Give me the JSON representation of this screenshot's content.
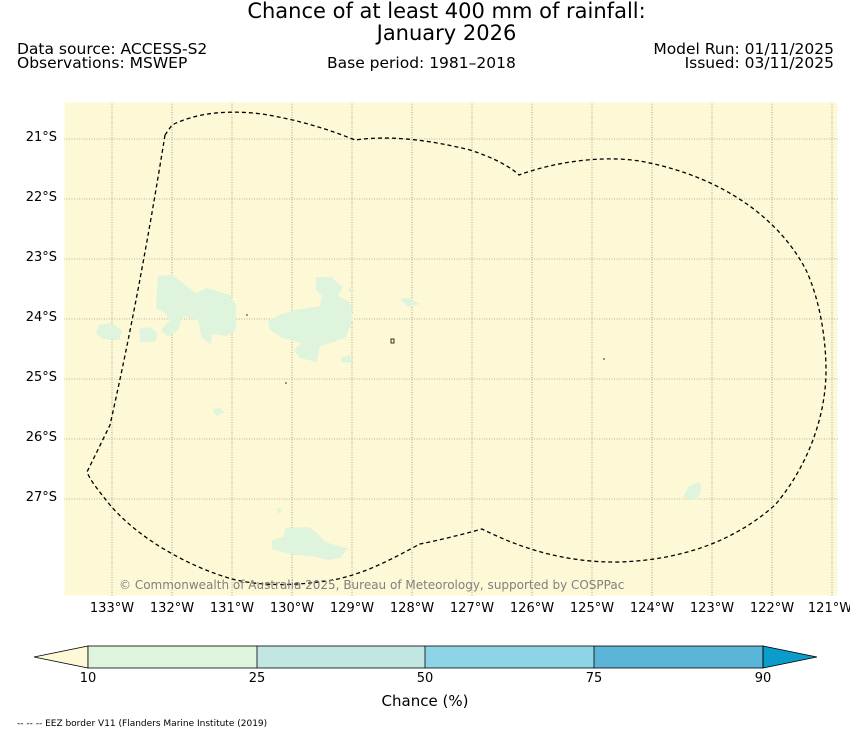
{
  "title": {
    "line1": "Chance of at least 400 mm of rainfall:",
    "line2": "January 2026"
  },
  "header": {
    "data_source": "Data source: ACCESS-S2",
    "observations": "Observations: MSWEP",
    "base_period": "Base period: 1981–2018",
    "model_run": "Model Run: 01/11/2025",
    "issued": "Issued: 03/11/2025"
  },
  "map": {
    "background_color": "#fdf8d5",
    "land_color": "#dff4dc",
    "grid_color": "#6e6e6e",
    "lat_labels": [
      "21°S",
      "22°S",
      "23°S",
      "24°S",
      "25°S",
      "26°S",
      "27°S"
    ],
    "lon_labels": [
      "133°W",
      "132°W",
      "131°W",
      "130°W",
      "129°W",
      "128°W",
      "127°W",
      "126°W",
      "125°W",
      "124°W",
      "123°W",
      "122°W",
      "121°W"
    ],
    "copyright": "© Commonwealth of Australia 2025, Bureau of Meteorology, supported by COSPPac"
  },
  "colorbar": {
    "ticks": [
      "10",
      "25",
      "50",
      "75",
      "90"
    ],
    "colors": [
      "#fdf8d5",
      "#dff4dc",
      "#c2e6e2",
      "#8cd4e6",
      "#5bb5d8",
      "#0a9ccb"
    ],
    "label": "Chance (%)"
  },
  "footnote": "-- -- -- EEZ border V11 (Flanders Marine Institute (2019)"
}
